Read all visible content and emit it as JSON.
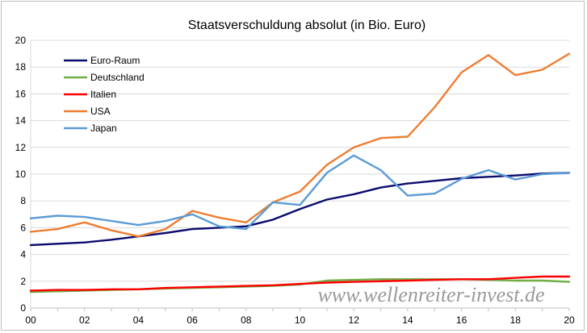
{
  "chart_data": {
    "type": "line",
    "title": "Staatsverschuldung absolut (in Bio. Euro)",
    "watermark": "www.wellenreiter-invest.de",
    "x": [
      "00",
      "01",
      "02",
      "03",
      "04",
      "05",
      "06",
      "07",
      "08",
      "09",
      "10",
      "11",
      "12",
      "13",
      "14",
      "15",
      "16",
      "17",
      "18",
      "19",
      "20"
    ],
    "x_tick_labels": [
      "00",
      "02",
      "04",
      "06",
      "08",
      "10",
      "12",
      "14",
      "16",
      "18",
      "20"
    ],
    "y_tick_labels": [
      "0",
      "2",
      "4",
      "6",
      "8",
      "10",
      "12",
      "14",
      "16",
      "18",
      "20"
    ],
    "ylim": [
      0,
      20
    ],
    "grid": "horizontal",
    "legend_position": "top-left",
    "series": [
      {
        "name": "Euro-Raum",
        "color": "#0b0b6e",
        "values": [
          4.7,
          4.8,
          4.9,
          5.1,
          5.35,
          5.6,
          5.9,
          6.0,
          6.1,
          6.6,
          7.4,
          8.1,
          8.5,
          9.0,
          9.3,
          9.5,
          9.7,
          9.8,
          9.9,
          10.05,
          10.1
        ]
      },
      {
        "name": "Deutschland",
        "color": "#70ad47",
        "values": [
          1.2,
          1.25,
          1.3,
          1.35,
          1.4,
          1.45,
          1.5,
          1.55,
          1.6,
          1.65,
          1.75,
          2.05,
          2.1,
          2.15,
          2.15,
          2.15,
          2.15,
          2.1,
          2.05,
          2.05,
          1.95
        ]
      },
      {
        "name": "Italien",
        "color": "#ff0000",
        "values": [
          1.3,
          1.35,
          1.35,
          1.4,
          1.4,
          1.5,
          1.55,
          1.6,
          1.65,
          1.7,
          1.8,
          1.9,
          1.95,
          2.0,
          2.05,
          2.1,
          2.15,
          2.15,
          2.25,
          2.35,
          2.35
        ]
      },
      {
        "name": "USA",
        "color": "#ed7d31",
        "values": [
          5.7,
          5.9,
          6.4,
          5.8,
          5.35,
          5.9,
          7.25,
          6.75,
          6.4,
          7.9,
          8.7,
          10.7,
          12.0,
          12.7,
          12.8,
          15.0,
          17.6,
          18.9,
          17.4,
          17.8,
          19.0
        ]
      },
      {
        "name": "Japan",
        "color": "#5b9bd5",
        "values": [
          6.7,
          6.9,
          6.8,
          6.5,
          6.2,
          6.5,
          7.0,
          6.1,
          5.9,
          7.9,
          7.7,
          10.1,
          11.4,
          10.3,
          8.4,
          8.55,
          9.65,
          10.3,
          9.6,
          10.0,
          10.1
        ]
      }
    ]
  }
}
